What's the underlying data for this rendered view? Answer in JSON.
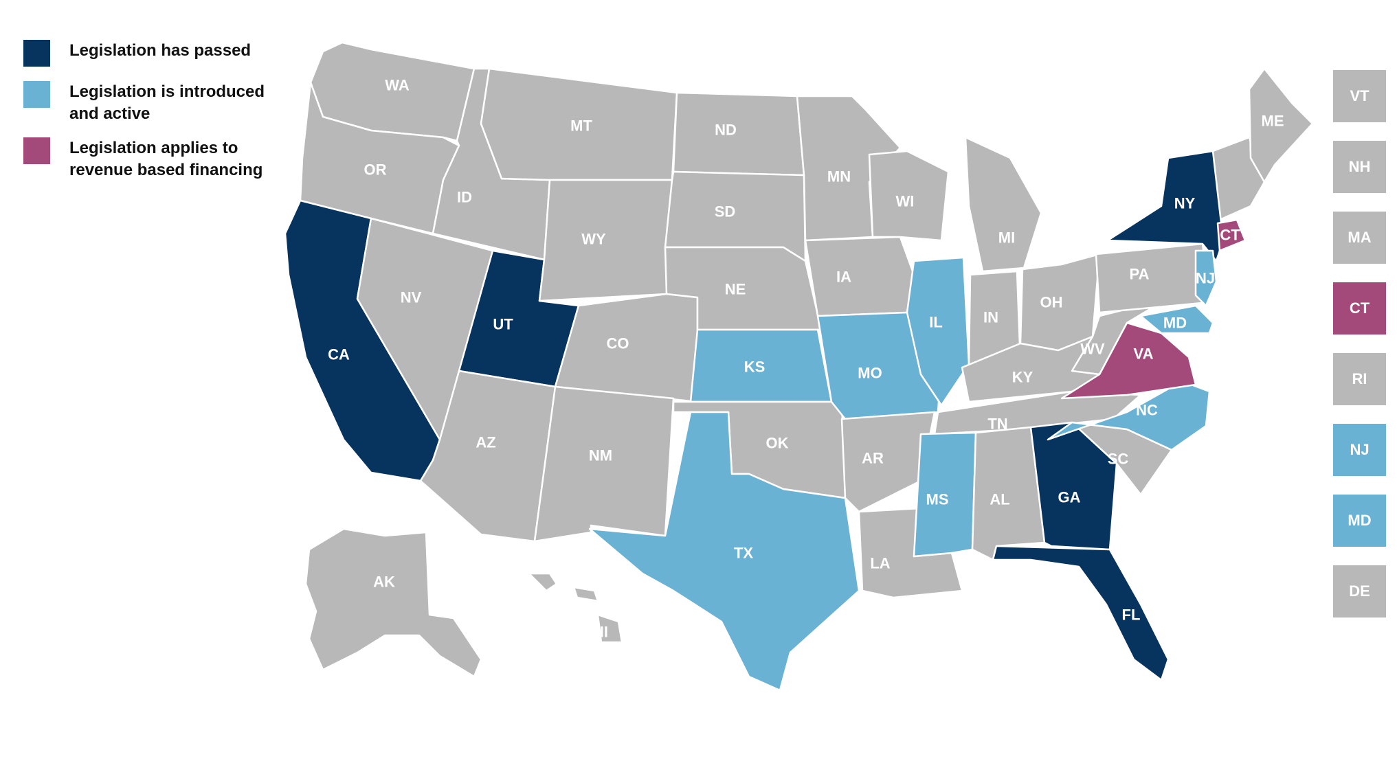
{
  "colors": {
    "passed": "#06345f",
    "introduced": "#6ab2d3",
    "rbf": "#a34a7b",
    "none": "#b8b8b8"
  },
  "legend": [
    {
      "key": "passed",
      "label": "Legislation has passed"
    },
    {
      "key": "introduced",
      "label": "Legislation is introduced\nand active"
    },
    {
      "key": "rbf",
      "label": "Legislation applies to\nrevenue based financing"
    }
  ],
  "states": [
    {
      "abbr": "WA",
      "status": "none"
    },
    {
      "abbr": "OR",
      "status": "none"
    },
    {
      "abbr": "CA",
      "status": "passed"
    },
    {
      "abbr": "ID",
      "status": "none"
    },
    {
      "abbr": "NV",
      "status": "none"
    },
    {
      "abbr": "UT",
      "status": "passed"
    },
    {
      "abbr": "AZ",
      "status": "none"
    },
    {
      "abbr": "MT",
      "status": "none"
    },
    {
      "abbr": "WY",
      "status": "none"
    },
    {
      "abbr": "CO",
      "status": "none"
    },
    {
      "abbr": "NM",
      "status": "none"
    },
    {
      "abbr": "ND",
      "status": "none"
    },
    {
      "abbr": "SD",
      "status": "none"
    },
    {
      "abbr": "NE",
      "status": "none"
    },
    {
      "abbr": "KS",
      "status": "introduced"
    },
    {
      "abbr": "OK",
      "status": "none"
    },
    {
      "abbr": "TX",
      "status": "introduced"
    },
    {
      "abbr": "MN",
      "status": "none"
    },
    {
      "abbr": "IA",
      "status": "none"
    },
    {
      "abbr": "MO",
      "status": "introduced"
    },
    {
      "abbr": "AR",
      "status": "none"
    },
    {
      "abbr": "LA",
      "status": "none"
    },
    {
      "abbr": "WI",
      "status": "none"
    },
    {
      "abbr": "IL",
      "status": "introduced"
    },
    {
      "abbr": "MI",
      "status": "none"
    },
    {
      "abbr": "IN",
      "status": "none"
    },
    {
      "abbr": "OH",
      "status": "none"
    },
    {
      "abbr": "KY",
      "status": "none"
    },
    {
      "abbr": "TN",
      "status": "none"
    },
    {
      "abbr": "MS",
      "status": "introduced"
    },
    {
      "abbr": "AL",
      "status": "none"
    },
    {
      "abbr": "GA",
      "status": "passed"
    },
    {
      "abbr": "FL",
      "status": "passed"
    },
    {
      "abbr": "SC",
      "status": "none"
    },
    {
      "abbr": "NC",
      "status": "introduced"
    },
    {
      "abbr": "VA",
      "status": "rbf"
    },
    {
      "abbr": "WV",
      "status": "none"
    },
    {
      "abbr": "PA",
      "status": "none"
    },
    {
      "abbr": "NY",
      "status": "passed"
    },
    {
      "abbr": "ME",
      "status": "none"
    },
    {
      "abbr": "AK",
      "status": "none"
    },
    {
      "abbr": "HI",
      "status": "none"
    },
    {
      "abbr": "NJ",
      "status": "introduced"
    },
    {
      "abbr": "MD",
      "status": "introduced"
    },
    {
      "abbr": "DE",
      "status": "none"
    },
    {
      "abbr": "CT",
      "status": "rbf"
    },
    {
      "abbr": "VT",
      "status": "none"
    },
    {
      "abbr": "NH",
      "status": "none"
    },
    {
      "abbr": "MA",
      "status": "none"
    },
    {
      "abbr": "RI",
      "status": "none"
    }
  ],
  "northeast_boxes": [
    {
      "abbr": "VT",
      "status": "none"
    },
    {
      "abbr": "NH",
      "status": "none"
    },
    {
      "abbr": "MA",
      "status": "none"
    },
    {
      "abbr": "CT",
      "status": "rbf"
    },
    {
      "abbr": "RI",
      "status": "none"
    },
    {
      "abbr": "NJ",
      "status": "introduced"
    },
    {
      "abbr": "MD",
      "status": "introduced"
    },
    {
      "abbr": "DE",
      "status": "none"
    }
  ]
}
